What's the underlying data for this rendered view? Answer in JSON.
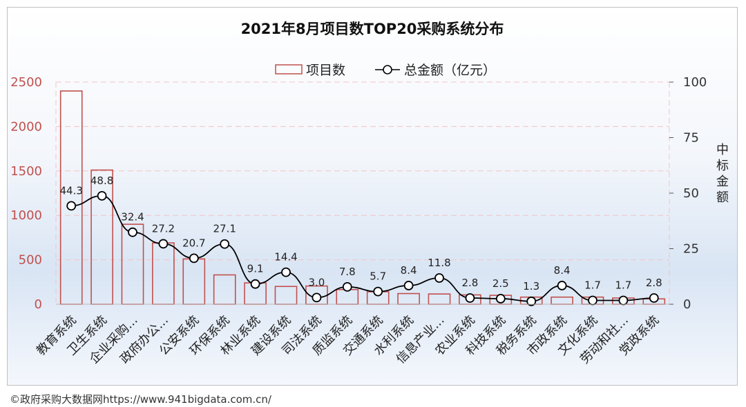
{
  "chart_data": {
    "type": "bar",
    "title": "2021年8月项目数TOP20采购系统分布",
    "categories": [
      "教育系统",
      "卫生系统",
      "企业采购...",
      "政府办公...",
      "公安系统",
      "环保系统",
      "林业系统",
      "建设系统",
      "司法系统",
      "质监系统",
      "交通系统",
      "水利系统",
      "信息产业...",
      "农业系统",
      "科技系统",
      "税务系统",
      "市政系统",
      "文化系统",
      "劳动和社...",
      "党政系统"
    ],
    "series": [
      {
        "name": "项目数",
        "axis": "left",
        "kind": "bar",
        "color": "#c0504d",
        "values": [
          2400,
          1510,
          900,
          690,
          510,
          330,
          240,
          200,
          205,
          165,
          140,
          120,
          115,
          105,
          100,
          80,
          80,
          80,
          70,
          60
        ]
      },
      {
        "name": "总金额（亿元）",
        "axis": "right",
        "kind": "line",
        "color": "#000000",
        "values": [
          44.3,
          48.8,
          32.4,
          27.2,
          20.7,
          27.1,
          9.1,
          14.4,
          3.0,
          7.8,
          5.7,
          8.4,
          11.8,
          2.8,
          2.5,
          1.3,
          8.4,
          1.7,
          1.7,
          2.8
        ],
        "labels": [
          "44.3",
          "48.8",
          "32.4",
          "27.2",
          "20.7",
          "27.1",
          "9.1",
          "14.4",
          "3.0",
          "7.8",
          "5.7",
          "8.4",
          "11.8",
          "2.8",
          "2.5",
          "1.3",
          "8.4",
          "1.7",
          "1.7",
          "2.8"
        ]
      }
    ],
    "y_left": {
      "min": 0,
      "max": 2500,
      "ticks": [
        "0",
        "500",
        "1000",
        "1500",
        "2000",
        "2500"
      ]
    },
    "y_right": {
      "min": 0,
      "max": 100,
      "ticks": [
        "0",
        "25",
        "50",
        "75",
        "100"
      ],
      "label": "中标金额"
    },
    "legend": {
      "position": "top-center",
      "entries": [
        "项目数",
        "总金额（亿元）"
      ]
    },
    "grid": true
  },
  "footer": {
    "text": "©政府采购大数据网https://www.941bigdata.com.cn/"
  }
}
